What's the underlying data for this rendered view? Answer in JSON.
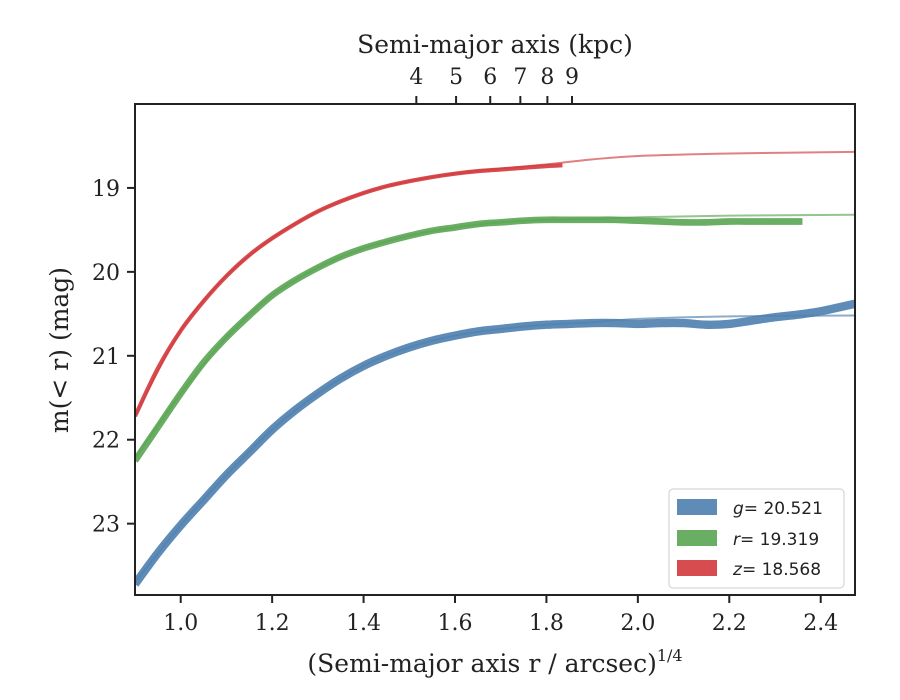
{
  "chart_data": {
    "type": "line",
    "xlabel": "(Semi-major axis r / arcsec)",
    "xlabel_superscript": "1/4",
    "ylabel": "m(< r) (mag)",
    "top_xlabel": "Semi-major axis (kpc)",
    "xlim": [
      0.9,
      2.475
    ],
    "ylim": [
      23.85,
      18.0
    ],
    "y_inverted": true,
    "x_ticks": [
      1.0,
      1.2,
      1.4,
      1.6,
      1.8,
      2.0,
      2.2,
      2.4
    ],
    "x_tick_labels": [
      "1.0",
      "1.2",
      "1.4",
      "1.6",
      "1.8",
      "2.0",
      "2.2",
      "2.4"
    ],
    "y_ticks": [
      19,
      20,
      21,
      22,
      23
    ],
    "y_tick_labels": [
      "19",
      "20",
      "21",
      "22",
      "23"
    ],
    "top_ticks_kpc": [
      4,
      5,
      6,
      7,
      8,
      9
    ],
    "top_tick_labels": [
      "4",
      "5",
      "6",
      "7",
      "8",
      "9"
    ],
    "legend_position": "bottom-right",
    "grid": false,
    "series": [
      {
        "name": "g = 20.521",
        "legend_symbol": "g",
        "legend_value": "= 20.521",
        "color": "#4e7fae",
        "band_width": 0.1,
        "x": [
          0.9,
          0.95,
          1.0,
          1.05,
          1.1,
          1.15,
          1.2,
          1.25,
          1.3,
          1.35,
          1.4,
          1.45,
          1.5,
          1.55,
          1.6,
          1.65,
          1.7,
          1.75,
          1.8,
          1.85,
          1.9,
          1.95,
          2.0,
          2.05,
          2.1,
          2.15,
          2.2,
          2.25,
          2.3,
          2.35,
          2.4,
          2.475
        ],
        "y": [
          23.72,
          23.35,
          23.02,
          22.72,
          22.42,
          22.15,
          21.88,
          21.65,
          21.45,
          21.27,
          21.12,
          21.0,
          20.9,
          20.82,
          20.76,
          20.71,
          20.68,
          20.65,
          20.63,
          20.62,
          20.61,
          20.61,
          20.62,
          20.61,
          20.61,
          20.63,
          20.62,
          20.58,
          20.54,
          20.51,
          20.47,
          20.38
        ],
        "model_x": [
          0.9,
          1.0,
          1.1,
          1.2,
          1.3,
          1.4,
          1.5,
          1.6,
          1.7,
          1.8,
          1.9,
          2.0,
          2.2,
          2.475
        ],
        "model_y": [
          23.7,
          23.02,
          22.42,
          21.88,
          21.45,
          21.12,
          20.9,
          20.76,
          20.68,
          20.63,
          20.6,
          20.56,
          20.53,
          20.52
        ]
      },
      {
        "name": "r = 19.319",
        "legend_symbol": "r",
        "legend_value": "= 19.319",
        "color": "#5aa553",
        "band_width": 0.08,
        "x": [
          0.9,
          0.95,
          1.0,
          1.05,
          1.1,
          1.15,
          1.2,
          1.25,
          1.3,
          1.35,
          1.4,
          1.45,
          1.5,
          1.55,
          1.6,
          1.65,
          1.7,
          1.75,
          1.8,
          1.85,
          1.9,
          1.95,
          2.0,
          2.05,
          2.1,
          2.15,
          2.2,
          2.25,
          2.3,
          2.36
        ],
        "y": [
          22.25,
          21.85,
          21.45,
          21.08,
          20.78,
          20.52,
          20.28,
          20.1,
          19.95,
          19.82,
          19.72,
          19.64,
          19.57,
          19.51,
          19.47,
          19.43,
          19.41,
          19.39,
          19.38,
          19.38,
          19.38,
          19.38,
          19.39,
          19.4,
          19.41,
          19.41,
          19.4,
          19.4,
          19.4,
          19.4
        ],
        "model_x": [
          0.9,
          1.0,
          1.1,
          1.2,
          1.3,
          1.4,
          1.5,
          1.6,
          1.7,
          1.8,
          1.9,
          2.0,
          2.2,
          2.475
        ],
        "model_y": [
          22.22,
          21.45,
          20.78,
          20.28,
          19.95,
          19.72,
          19.57,
          19.47,
          19.41,
          19.38,
          19.37,
          19.35,
          19.33,
          19.32
        ]
      },
      {
        "name": "z = 18.568",
        "legend_symbol": "z",
        "legend_value": "= 18.568",
        "color": "#d33a3c",
        "band_width": 0.05,
        "x": [
          0.9,
          0.95,
          1.0,
          1.05,
          1.1,
          1.15,
          1.2,
          1.25,
          1.3,
          1.35,
          1.4,
          1.45,
          1.5,
          1.55,
          1.6,
          1.65,
          1.7,
          1.75,
          1.8,
          1.835
        ],
        "y": [
          21.72,
          21.15,
          20.7,
          20.35,
          20.05,
          19.8,
          19.6,
          19.43,
          19.28,
          19.16,
          19.06,
          18.98,
          18.92,
          18.87,
          18.83,
          18.8,
          18.78,
          18.76,
          18.74,
          18.73
        ],
        "model_x": [
          0.9,
          1.0,
          1.1,
          1.2,
          1.3,
          1.4,
          1.5,
          1.6,
          1.7,
          1.8,
          1.9,
          2.0,
          2.2,
          2.475
        ],
        "model_y": [
          21.72,
          20.7,
          20.05,
          19.6,
          19.28,
          19.06,
          18.92,
          18.83,
          18.77,
          18.72,
          18.66,
          18.62,
          18.59,
          18.57
        ]
      }
    ]
  }
}
